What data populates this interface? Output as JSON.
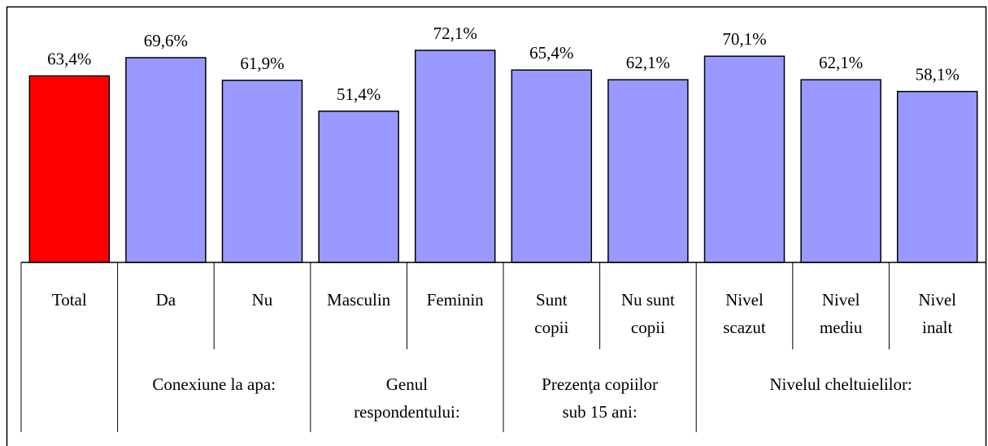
{
  "chart_data": {
    "type": "bar",
    "ylim": [
      0,
      87
    ],
    "groups": [
      {
        "name": null,
        "color": "#ff0000",
        "categories": [
          "Total"
        ],
        "values": [
          63.4
        ],
        "value_labels": [
          "63,4%"
        ]
      },
      {
        "name": "Conexiune la apa:",
        "color": "#9999ff",
        "categories": [
          "Da",
          "Nu"
        ],
        "values": [
          69.6,
          61.9
        ],
        "value_labels": [
          "69,6%",
          "61,9%"
        ]
      },
      {
        "name": "Genul respondentului:",
        "color": "#9999ff",
        "categories": [
          "Masculin",
          "Feminin"
        ],
        "values": [
          51.4,
          72.1
        ],
        "value_labels": [
          "51,4%",
          "72,1%"
        ]
      },
      {
        "name": "Prezenţa copiilor sub 15 ani:",
        "color": "#9999ff",
        "categories": [
          "Sunt copii",
          "Nu sunt copii"
        ],
        "values": [
          65.4,
          62.1
        ],
        "value_labels": [
          "65,4%",
          "62,1%"
        ]
      },
      {
        "name": "Nivelul cheltuielilor:",
        "color": "#9999ff",
        "categories": [
          "Nivel scazut",
          "Nivel mediu",
          "Nivel inalt"
        ],
        "values": [
          70.1,
          62.1,
          58.1
        ],
        "value_labels": [
          "70,1%",
          "62,1%",
          "58,1%"
        ]
      }
    ]
  }
}
